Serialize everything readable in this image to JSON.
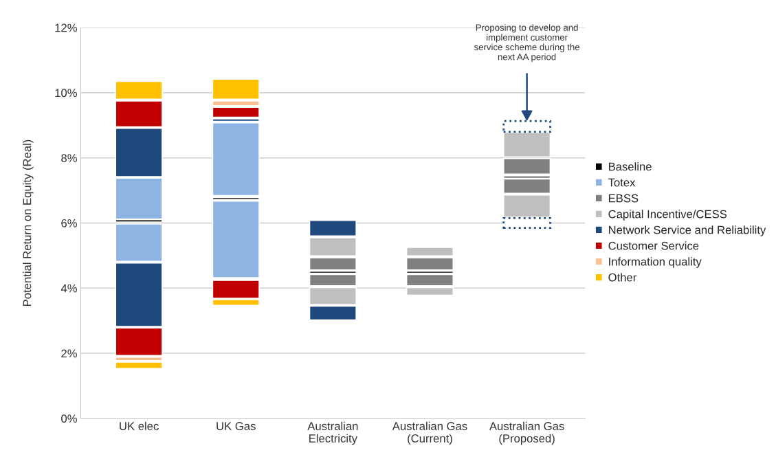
{
  "chart_data": {
    "type": "bar",
    "ylabel": "Potential Return on Equity (Real)",
    "categories": [
      "UK elec",
      "UK Gas",
      "Australian\nElectricity",
      "Australian Gas\n(Current)",
      "Australian Gas\n(Proposed)"
    ],
    "ylim": [
      0,
      12
    ],
    "yticks": [
      {
        "value": 0,
        "label": "0%"
      },
      {
        "value": 2,
        "label": "2%"
      },
      {
        "value": 4,
        "label": "4%"
      },
      {
        "value": 6,
        "label": "6%"
      },
      {
        "value": 8,
        "label": "8%"
      },
      {
        "value": 10,
        "label": "10%"
      },
      {
        "value": 12,
        "label": "12%"
      }
    ],
    "grid": "y",
    "legend": "right",
    "series": [
      {
        "name": "Baseline",
        "color": "#000000",
        "base": [
          6.03,
          6.72,
          4.46,
          4.46,
          7.38
        ],
        "values": [
          0.07,
          0.06,
          0.06,
          0.06,
          0.06
        ]
      },
      {
        "name": "Totex",
        "color": "#8eb4e3",
        "base": [
          6.12,
          6.84,
          null,
          null,
          null
        ],
        "values": [
          1.26,
          2.24,
          null,
          null,
          null
        ]
      },
      {
        "name": "EBSS",
        "color": "#808080",
        "base": [
          null,
          null,
          4.56,
          4.56,
          7.5
        ],
        "values": [
          null,
          null,
          0.37,
          0.37,
          0.48
        ]
      },
      {
        "name": "Capital Incentive/CESS",
        "color": "#bfbfbf",
        "base": [
          null,
          null,
          4.99,
          4.99,
          8.03
        ],
        "values": [
          null,
          null,
          0.56,
          0.26,
          0.75
        ]
      },
      {
        "name": "Network Service and Reliability",
        "color": "#1f497d",
        "base": [
          7.42,
          9.12,
          5.6,
          null,
          null
        ],
        "values": [
          1.49,
          0.08,
          0.48,
          null,
          null
        ]
      },
      {
        "name": "Customer Service",
        "color": "#c00000",
        "base": [
          8.95,
          9.25,
          null,
          null,
          null
        ],
        "values": [
          0.8,
          0.3,
          null,
          null,
          null
        ]
      },
      {
        "name": "Information quality",
        "color": "#fac090",
        "base": [
          null,
          9.6,
          null,
          null,
          null
        ],
        "values": [
          null,
          0.15,
          null,
          null,
          null
        ]
      },
      {
        "name": "Other",
        "color": "#ffc000",
        "base": [
          9.8,
          9.8,
          null,
          null,
          null
        ],
        "values": [
          0.55,
          0.62,
          null,
          null,
          null
        ]
      },
      {
        "color": "#8eb4e3",
        "base": [
          4.82,
          4.32,
          null,
          null,
          null
        ],
        "values": [
          1.15,
          2.35,
          null,
          null,
          null
        ]
      },
      {
        "color": "#808080",
        "base": [
          null,
          null,
          4.07,
          4.07,
          6.91
        ],
        "values": [
          null,
          null,
          0.35,
          0.35,
          0.44
        ]
      },
      {
        "color": "#bfbfbf",
        "base": [
          null,
          null,
          3.5,
          3.78,
          6.18
        ],
        "values": [
          null,
          null,
          0.52,
          0.24,
          0.68
        ]
      },
      {
        "color": "#1f497d",
        "base": [
          2.82,
          null,
          3.02,
          null,
          null
        ],
        "values": [
          1.95,
          null,
          0.43,
          null,
          null
        ]
      },
      {
        "color": "#c00000",
        "base": [
          1.93,
          3.69,
          null,
          null,
          null
        ],
        "values": [
          0.85,
          0.55,
          null,
          null,
          null
        ]
      },
      {
        "color": "#fac090",
        "base": [
          1.77,
          null,
          null,
          null,
          null
        ],
        "values": [
          0.11,
          null,
          null,
          null,
          null
        ]
      },
      {
        "color": "#ffc000",
        "base": [
          1.53,
          3.47,
          null,
          null,
          null
        ],
        "values": [
          0.2,
          0.18,
          null,
          null,
          null
        ]
      },
      {
        "color": "#1f497d",
        "line_style": "dotted",
        "base": [
          null,
          null,
          null,
          null,
          8.8
        ],
        "values": [
          null,
          null,
          null,
          null,
          0.33
        ]
      },
      {
        "color": "#1f497d",
        "line_style": "dotted",
        "base": [
          null,
          null,
          null,
          null,
          5.85
        ],
        "values": [
          null,
          null,
          null,
          null,
          0.3
        ]
      }
    ],
    "annotations": [
      "Proposing to develop and\nimplement customer\nservice scheme during the\nnext AA period"
    ]
  }
}
